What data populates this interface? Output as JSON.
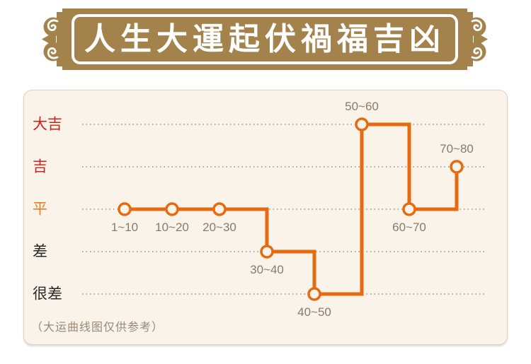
{
  "header": {
    "title": "人生大運起伏禍福吉凶"
  },
  "chart_data": {
    "type": "line",
    "subtype": "step-after",
    "title": "人生大運起伏禍福吉凶",
    "categories": [
      "1~10",
      "10~20",
      "20~30",
      "30~40",
      "40~50",
      "50~60",
      "60~70",
      "70~80"
    ],
    "values": [
      "平",
      "平",
      "平",
      "差",
      "很差",
      "大吉",
      "平",
      "吉"
    ],
    "level_index": [
      2,
      2,
      2,
      3,
      4,
      0,
      2,
      1
    ],
    "label_placement": [
      "below",
      "below",
      "below",
      "below",
      "below",
      "above",
      "below",
      "above"
    ],
    "y_axis": {
      "levels": [
        {
          "label": "大吉",
          "color": "#cc231a"
        },
        {
          "label": "吉",
          "color": "#cc231a"
        },
        {
          "label": "平",
          "color": "#ee7c2b"
        },
        {
          "label": "差",
          "color": "#2d2926"
        },
        {
          "label": "很差",
          "color": "#2d2926"
        }
      ]
    },
    "line_color": "#e66a10",
    "marker": {
      "fill": "#faf3ea",
      "stroke": "#e66a10"
    },
    "grid": {
      "style": "dotted",
      "color": "#95908a"
    },
    "tick_label_color": "#8b7a68",
    "note": "（大运曲线图仅供参考）",
    "legend": "none"
  }
}
